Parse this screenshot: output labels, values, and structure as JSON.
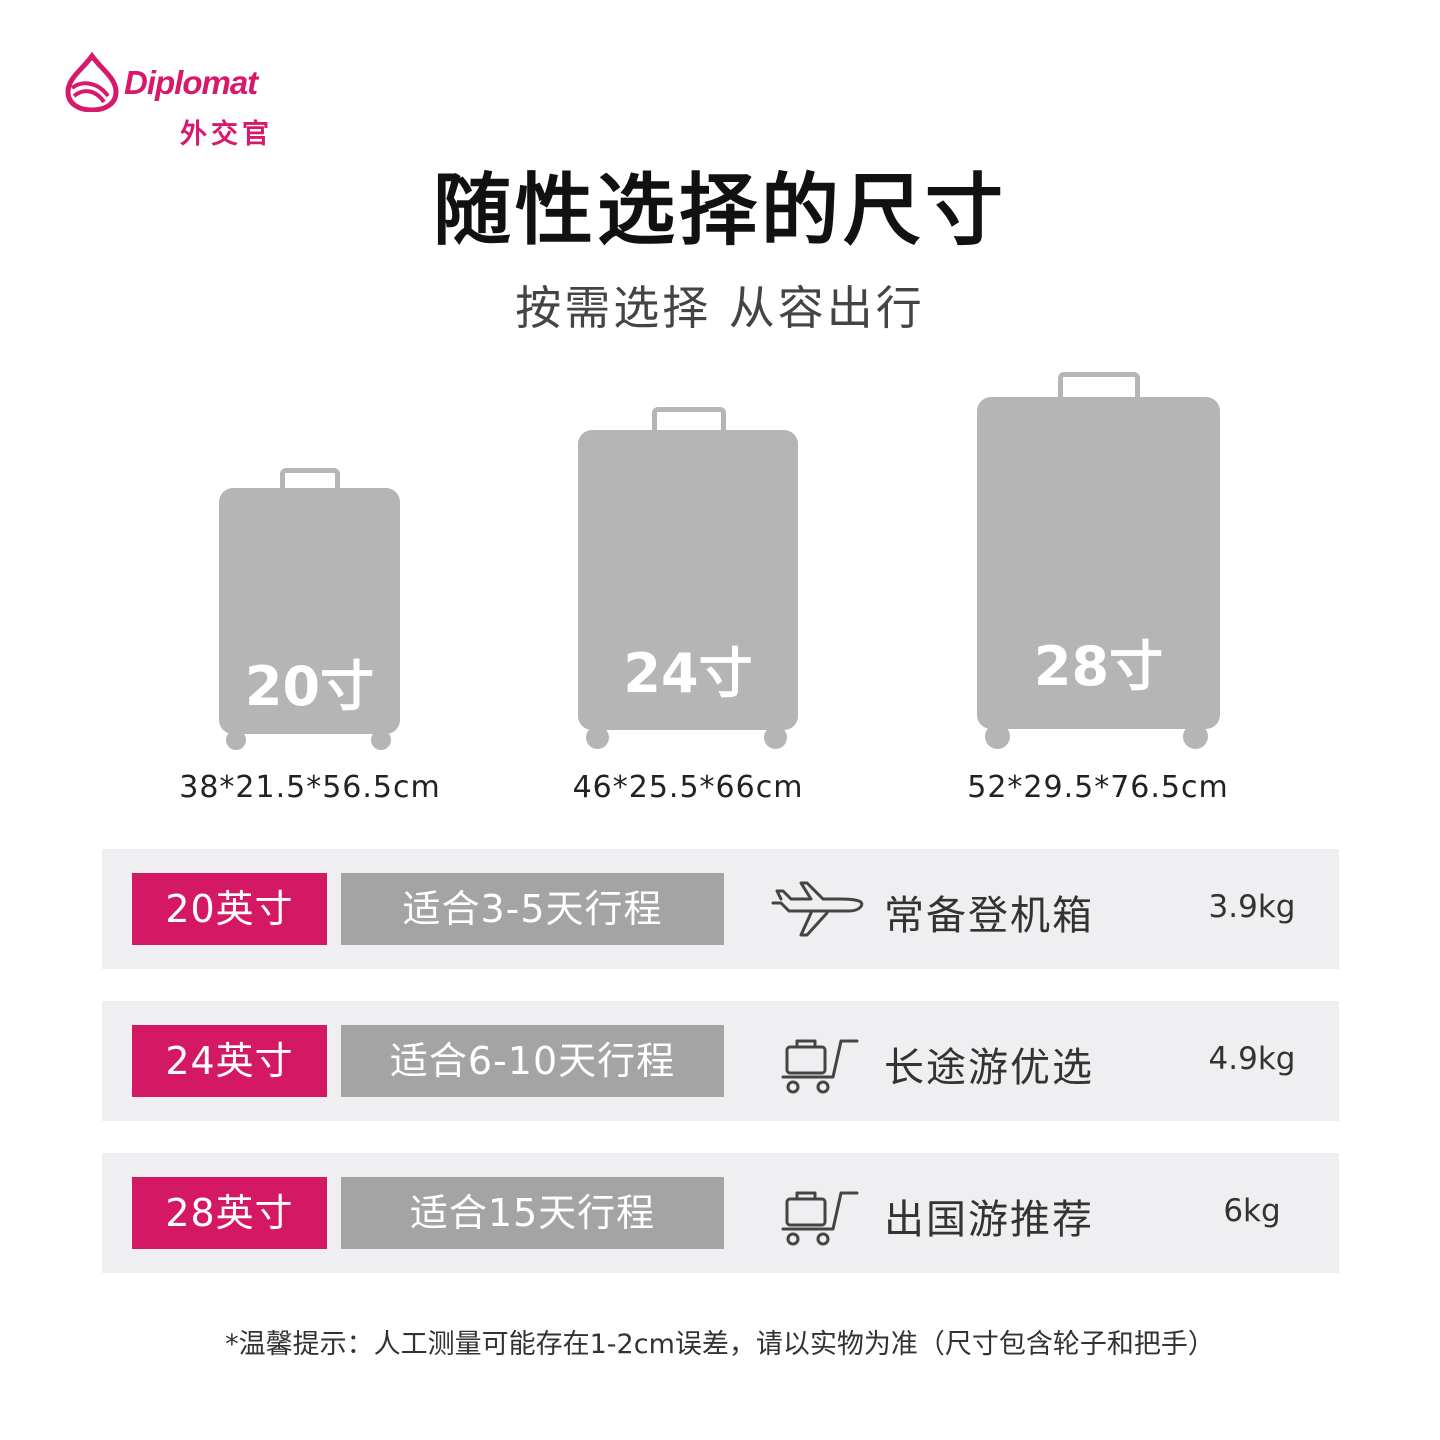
{
  "brand": {
    "name_en": "Diplomat",
    "name_cn": "外交官",
    "color": "#d8196b"
  },
  "header": {
    "title": "随性选择的尺寸",
    "subtitle": "按需选择 从容出行"
  },
  "suitcases": [
    {
      "size": "20寸",
      "dimensions": "38*21.5*56.5cm"
    },
    {
      "size": "24寸",
      "dimensions": "46*25.5*66cm"
    },
    {
      "size": "28寸",
      "dimensions": "52*29.5*76.5cm"
    }
  ],
  "rows": [
    {
      "size": "20英寸",
      "days": "适合3-5天行程",
      "icon": "airplane-icon",
      "desc": "常备登机箱",
      "weight": "3.9kg"
    },
    {
      "size": "24英寸",
      "days": "适合6-10天行程",
      "icon": "luggage-cart-icon",
      "desc": "长途游优选",
      "weight": "4.9kg"
    },
    {
      "size": "28英寸",
      "days": "适合15天行程",
      "icon": "luggage-cart-icon",
      "desc": "出国游推荐",
      "weight": "6kg"
    }
  ],
  "colors": {
    "accent": "#d41863",
    "tag_gray": "#a4a4a4",
    "suitcase_gray": "#b5b5b5",
    "row_bg": "#efeff1"
  },
  "note": "*温馨提示：人工测量可能存在1-2cm误差，请以实物为准（尺寸包含轮子和把手）"
}
